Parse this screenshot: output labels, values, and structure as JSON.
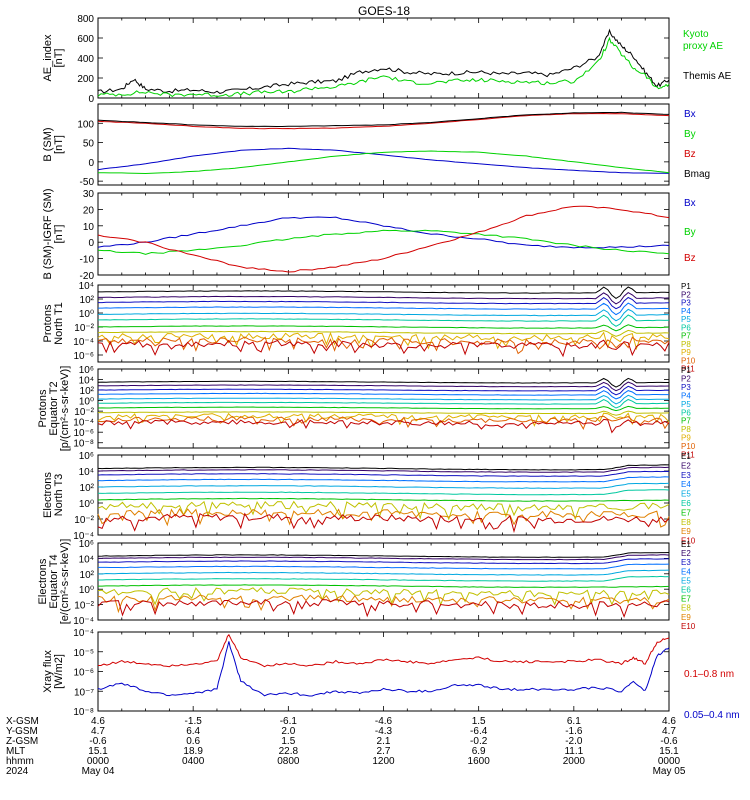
{
  "title": "GOES-18",
  "colors": {
    "black": "#000000",
    "blue": "#0000c8",
    "green": "#00d200",
    "red": "#d20000",
    "P": [
      "#000000",
      "#330066",
      "#1010c0",
      "#0070ff",
      "#00a8e0",
      "#00c8a0",
      "#00c000",
      "#c0c000",
      "#e0b000",
      "#e06000",
      "#c00000"
    ],
    "E": [
      "#000000",
      "#330066",
      "#1010c0",
      "#0070ff",
      "#00a8e0",
      "#00c8a0",
      "#00c000",
      "#c0c000",
      "#e08000",
      "#c00000"
    ]
  },
  "chart_data": [
    {
      "id": "ae",
      "type": "line",
      "ylabel": [
        "AE_index",
        "[nT]"
      ],
      "ylim": [
        0,
        800
      ],
      "yticks": [
        "0",
        "200",
        "400",
        "600",
        "800"
      ],
      "legend": [
        {
          "text": [
            "Kyoto",
            "proxy AE"
          ],
          "color": "#00d200"
        },
        {
          "text": [
            "Themis AE"
          ],
          "color": "#000000"
        }
      ],
      "series": [
        {
          "name": "Themis AE",
          "color": "#000000",
          "x": [
            0,
            1,
            1.5,
            2,
            3,
            4,
            5,
            6,
            7,
            8,
            9,
            10,
            11,
            12,
            13,
            14,
            15,
            16,
            17,
            18,
            19,
            20,
            21,
            21.5,
            22,
            22.5,
            23,
            23.5,
            24
          ],
          "y": [
            60,
            90,
            190,
            90,
            70,
            80,
            60,
            80,
            110,
            140,
            160,
            170,
            260,
            300,
            260,
            240,
            250,
            260,
            240,
            250,
            230,
            300,
            410,
            660,
            520,
            420,
            260,
            120,
            180
          ]
        },
        {
          "name": "Kyoto proxy AE",
          "color": "#00d200",
          "x": [
            0,
            1,
            2,
            3,
            4,
            5,
            6,
            7,
            8,
            9,
            10,
            11,
            12,
            13,
            14,
            15,
            16,
            17,
            18,
            19,
            20,
            21,
            21.5,
            22,
            22.5,
            23,
            23.5,
            24
          ],
          "y": [
            30,
            40,
            60,
            30,
            40,
            30,
            40,
            60,
            60,
            100,
            110,
            160,
            220,
            160,
            150,
            170,
            180,
            170,
            160,
            150,
            170,
            350,
            580,
            440,
            300,
            230,
            90,
            140
          ]
        }
      ]
    },
    {
      "id": "b",
      "type": "line",
      "ylabel": [
        "B (SM)",
        "[nT]"
      ],
      "ylim": [
        -60,
        150
      ],
      "yticks": [
        "-50",
        "0",
        "50",
        "100"
      ],
      "legend": [
        {
          "text": [
            "Bx"
          ],
          "color": "#0000c8"
        },
        {
          "text": [
            "By"
          ],
          "color": "#00d200"
        },
        {
          "text": [
            "Bz"
          ],
          "color": "#d20000"
        },
        {
          "text": [
            "Bmag"
          ],
          "color": "#000000"
        }
      ],
      "series": [
        {
          "name": "Bx",
          "color": "#0000c8",
          "x": [
            0,
            2,
            4,
            6,
            8,
            10,
            12,
            14,
            16,
            18,
            20,
            22,
            24
          ],
          "y": [
            -20,
            -5,
            15,
            30,
            35,
            30,
            18,
            5,
            -5,
            -15,
            -22,
            -28,
            -30
          ]
        },
        {
          "name": "By",
          "color": "#00d200",
          "x": [
            0,
            2,
            4,
            6,
            8,
            10,
            12,
            14,
            16,
            18,
            20,
            22,
            24
          ],
          "y": [
            -28,
            -30,
            -25,
            -15,
            0,
            15,
            25,
            28,
            25,
            15,
            0,
            -15,
            -28
          ]
        },
        {
          "name": "Bz",
          "color": "#d20000",
          "x": [
            0,
            2,
            4,
            6,
            8,
            10,
            12,
            14,
            16,
            18,
            20,
            22,
            24
          ],
          "y": [
            105,
            100,
            92,
            87,
            86,
            88,
            92,
            100,
            110,
            120,
            125,
            125,
            120
          ]
        },
        {
          "name": "Bmag",
          "color": "#000000",
          "x": [
            0,
            2,
            4,
            6,
            8,
            10,
            12,
            14,
            16,
            18,
            20,
            22,
            24
          ],
          "y": [
            108,
            102,
            96,
            92,
            92,
            94,
            96,
            102,
            112,
            122,
            127,
            128,
            123
          ]
        }
      ]
    },
    {
      "id": "dbi",
      "type": "line",
      "ylabel": [
        "B (SM)-IGRF (SM)",
        "[nT]"
      ],
      "ylim": [
        -20,
        30
      ],
      "yticks": [
        "-20",
        "-10",
        "0",
        "10",
        "20",
        "30"
      ],
      "legend": [
        {
          "text": [
            "Bx"
          ],
          "color": "#0000c8"
        },
        {
          "text": [
            "By"
          ],
          "color": "#00d200"
        },
        {
          "text": [
            "Bz"
          ],
          "color": "#d20000"
        }
      ],
      "series": [
        {
          "name": "Bx",
          "color": "#0000c8",
          "x": [
            0,
            2,
            4,
            6,
            8,
            10,
            12,
            14,
            16,
            18,
            20,
            22,
            24
          ],
          "y": [
            -3,
            0,
            5,
            10,
            15,
            15,
            10,
            5,
            2,
            -2,
            -3,
            -3,
            -2
          ]
        },
        {
          "name": "By",
          "color": "#00d200",
          "x": [
            0,
            2,
            4,
            6,
            8,
            10,
            12,
            14,
            16,
            18,
            20,
            22,
            24
          ],
          "y": [
            -5,
            -7,
            -5,
            -2,
            2,
            5,
            7,
            7,
            5,
            2,
            -2,
            -5,
            -7
          ]
        },
        {
          "name": "Bz",
          "color": "#d20000",
          "x": [
            0,
            2,
            4,
            6,
            8,
            10,
            12,
            14,
            16,
            18,
            20,
            22,
            24
          ],
          "y": [
            4,
            0,
            -8,
            -15,
            -18,
            -15,
            -10,
            -2,
            6,
            16,
            22,
            20,
            15
          ]
        }
      ]
    },
    {
      "id": "p1",
      "type": "line",
      "scale": "log",
      "ylabel": [
        "Protons",
        "North T1"
      ],
      "ylim": [
        -7,
        4
      ],
      "yticks": [
        "10⁴",
        "10²",
        "10⁰",
        "10⁻²",
        "10⁻⁴",
        "10⁻⁶"
      ],
      "ytick_exp": [
        4,
        2,
        0,
        -2,
        -4,
        -6
      ],
      "channels": [
        "P1",
        "P2",
        "P3",
        "P4",
        "P5",
        "P6",
        "P7",
        "P8",
        "P9",
        "P10",
        "P11"
      ],
      "levels": [
        3.0,
        2.2,
        1.5,
        0.7,
        -0.2,
        -1.0,
        -2.0,
        -2.8,
        -3.4,
        -4.0,
        -4.5
      ]
    },
    {
      "id": "p2",
      "type": "line",
      "scale": "log",
      "ylabel": [
        "Protons",
        "Equator T2",
        "[p/(cm²-s-sr-keV)]"
      ],
      "ylim": [
        -9,
        6
      ],
      "yticks": [
        "10⁶",
        "10⁴",
        "10²",
        "10⁰",
        "10⁻²",
        "10⁻⁴",
        "10⁻⁶",
        "10⁻⁸"
      ],
      "ytick_exp": [
        6,
        4,
        2,
        0,
        -2,
        -4,
        -6,
        -8
      ],
      "channels": [
        "P1",
        "P2",
        "P3",
        "P4",
        "P5",
        "P6",
        "P7",
        "P8",
        "P9",
        "P10",
        "P11"
      ],
      "levels": [
        3.5,
        2.8,
        2.0,
        1.2,
        0.3,
        -0.5,
        -1.4,
        -2.3,
        -3.0,
        -3.6,
        -4.2
      ]
    },
    {
      "id": "e1",
      "type": "line",
      "scale": "log",
      "ylabel": [
        "Electrons",
        "North T3"
      ],
      "ylim": [
        -4,
        6
      ],
      "yticks": [
        "10⁶",
        "10⁴",
        "10²",
        "10⁰",
        "10⁻²",
        "10⁻⁴"
      ],
      "ytick_exp": [
        6,
        4,
        2,
        0,
        -2,
        -4
      ],
      "channels": [
        "E1",
        "E2",
        "E3",
        "E4",
        "E5",
        "E6",
        "E7",
        "E8",
        "E9",
        "E10"
      ],
      "levels": [
        4.3,
        4.0,
        3.5,
        2.8,
        2.0,
        1.2,
        0.4,
        -0.4,
        -1.3,
        -1.9
      ]
    },
    {
      "id": "e2",
      "type": "line",
      "scale": "log",
      "ylabel": [
        "Electrons",
        "Equator T4",
        "[e/(cm²-s-sr-keV)]"
      ],
      "ylim": [
        -4,
        6
      ],
      "yticks": [
        "10⁶",
        "10⁴",
        "10²",
        "10⁰",
        "10⁻²",
        "10⁻⁴"
      ],
      "ytick_exp": [
        6,
        4,
        2,
        0,
        -2,
        -4
      ],
      "channels": [
        "E1",
        "E2",
        "E3",
        "E4",
        "E5",
        "E6",
        "E7",
        "E8",
        "E9",
        "E10"
      ],
      "levels": [
        4.3,
        4.0,
        3.5,
        2.8,
        2.0,
        1.2,
        0.4,
        -0.4,
        -1.3,
        -1.9
      ]
    },
    {
      "id": "xray",
      "type": "line",
      "scale": "log",
      "ylabel": [
        "Xray flux",
        "[W/m2]"
      ],
      "ylim": [
        -8,
        -4
      ],
      "yticks": [
        "10⁻⁴",
        "10⁻⁵",
        "10⁻⁶",
        "10⁻⁷",
        "10⁻⁸"
      ],
      "ytick_exp": [
        -4,
        -5,
        -6,
        -7,
        -8
      ],
      "legend": [
        {
          "text": [
            "0.1–0.8 nm"
          ],
          "color": "#d20000"
        },
        {
          "text": [
            "0.05–0.4 nm"
          ],
          "color": "#0000c8"
        }
      ],
      "series": [
        {
          "name": "0.1–0.8 nm",
          "color": "#d20000",
          "x": [
            0,
            1,
            2,
            3,
            4,
            5,
            5.5,
            6,
            7,
            8,
            9,
            10,
            11,
            12,
            13,
            14,
            15,
            16,
            17,
            18,
            19,
            20,
            21,
            22,
            22.5,
            23,
            23.5,
            24
          ],
          "y": [
            -5.7,
            -5.5,
            -5.6,
            -5.7,
            -5.6,
            -5.5,
            -4.1,
            -5.3,
            -5.7,
            -5.6,
            -5.7,
            -5.5,
            -5.6,
            -5.4,
            -5.5,
            -5.6,
            -5.4,
            -5.3,
            -5.5,
            -5.5,
            -5.5,
            -5.5,
            -5.4,
            -5.6,
            -5.3,
            -5.6,
            -4.5,
            -4.3
          ]
        },
        {
          "name": "0.05–0.4 nm",
          "color": "#0000c8",
          "x": [
            0,
            1,
            2,
            3,
            4,
            5,
            5.5,
            6,
            7,
            8,
            9,
            10,
            11,
            12,
            13,
            14,
            15,
            16,
            17,
            18,
            19,
            20,
            21,
            22,
            22.5,
            23,
            23.5,
            24
          ],
          "y": [
            -6.9,
            -6.6,
            -7.0,
            -7.2,
            -7.1,
            -6.9,
            -4.5,
            -6.5,
            -7.2,
            -7.1,
            -7.2,
            -7.0,
            -7.1,
            -6.9,
            -7.0,
            -7.0,
            -6.7,
            -6.7,
            -6.9,
            -6.9,
            -6.9,
            -6.9,
            -6.8,
            -7.0,
            -6.5,
            -7.0,
            -5.2,
            -4.8
          ]
        }
      ]
    }
  ],
  "footer": {
    "labels": [
      "X-GSM",
      "Y-GSM",
      "Z-GSM",
      "MLT",
      "hhmm",
      "2024"
    ],
    "columns": [
      [
        "4.6",
        "4.7",
        "-0.6",
        "15.1",
        "0000",
        "May 04"
      ],
      [
        "-1.5",
        "6.4",
        "0.6",
        "18.9",
        "0400",
        ""
      ],
      [
        "-6.1",
        "2.0",
        "1.5",
        "22.8",
        "0800",
        ""
      ],
      [
        "-4.6",
        "-4.3",
        "2.1",
        "2.7",
        "1200",
        ""
      ],
      [
        "1.5",
        "-6.4",
        "-0.2",
        "6.9",
        "1600",
        ""
      ],
      [
        "6.1",
        "-1.6",
        "-2.0",
        "11.1",
        "2000",
        ""
      ],
      [
        "4.6",
        "4.7",
        "-0.6",
        "15.1",
        "0000",
        "May 05"
      ]
    ]
  }
}
